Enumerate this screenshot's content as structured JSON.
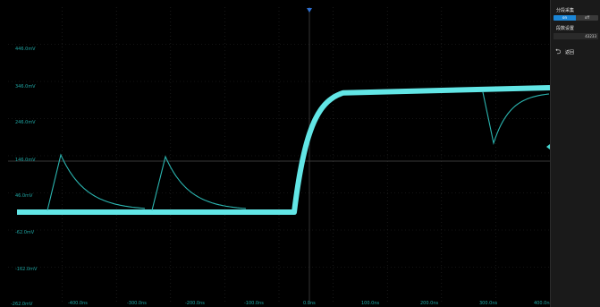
{
  "plot": {
    "voltage_labels": [
      "446.0mV",
      "346.0mV",
      "246.0mV",
      "146.0mV",
      "46.0mV",
      "-62.0mV",
      "-162.0mV",
      "-262.0mV"
    ],
    "time_labels": [
      "-500.0ns",
      "-400.0ns",
      "-300.0ns",
      "-200.0ns",
      "-100.0ns",
      "0.0ns",
      "100.0ns",
      "200.0ns",
      "300.0ns",
      "400.0ns"
    ]
  },
  "colors": {
    "trace": "#62e6e6",
    "trace_dim": "#2bb5b0",
    "grid": "#2a2a2a",
    "label": "#1fa6a3",
    "trigger_marker": "#2f6fd0",
    "panel_bg": "#1a1a1a"
  },
  "panel": {
    "segment_title": "分段采集",
    "toggle_options": [
      "on",
      "off"
    ],
    "toggle_selected": "on",
    "count_title": "段数设置",
    "count_value": "43233",
    "back_label": "返回",
    "back_icon": "return-arrow-icon"
  }
}
